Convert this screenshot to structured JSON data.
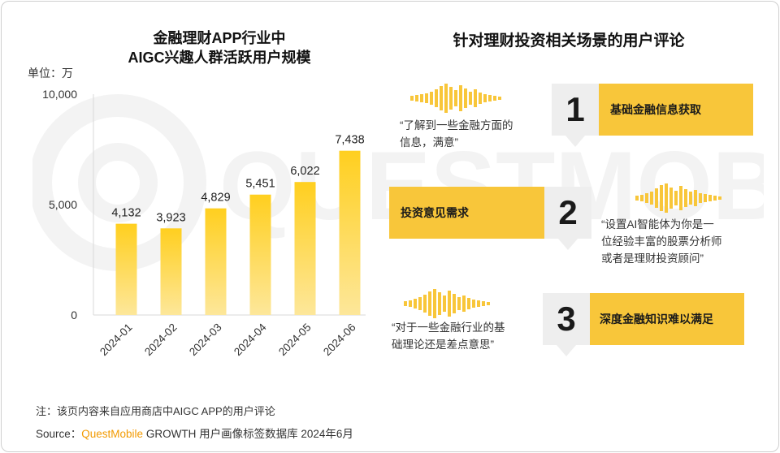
{
  "chart_data": {
    "type": "bar",
    "title_line1": "金融理财APP行业中",
    "title_line2": "AIGC兴趣人群活跃用户规模",
    "unit": "单位：万",
    "categories": [
      "2024-01",
      "2024-02",
      "2024-03",
      "2024-04",
      "2024-05",
      "2024-06"
    ],
    "values": [
      4132,
      3923,
      4829,
      5451,
      6022,
      7438
    ],
    "value_labels": [
      "4,132",
      "3,923",
      "4,829",
      "5,451",
      "6,022",
      "7,438"
    ],
    "yticks": [
      0,
      5000,
      10000
    ],
    "ytick_labels": [
      "0",
      "5,000",
      "10,000"
    ],
    "ylim": [
      0,
      10000
    ],
    "bar_color": "#fcc62a"
  },
  "reviews": {
    "title": "针对理财投资相关场景的用户评论",
    "items": [
      {
        "number": "1",
        "theme": "基础金融信息获取",
        "quote_lines": [
          "“了解到一些金融方面的",
          "信息，满意”"
        ]
      },
      {
        "number": "2",
        "theme": "投资意见需求",
        "quote_lines": [
          "“设置AI智能体为你是一",
          "位经验丰富的股票分析师",
          "或者是理财投资顾问”"
        ]
      },
      {
        "number": "3",
        "theme": "深度金融知识难以满足",
        "quote_lines": [
          "“对于一些金融行业的基",
          "础理论还是差点意思”"
        ]
      }
    ]
  },
  "footer": {
    "note": "注：该页内容来自应用商店中AIGC APP的用户评论",
    "source_prefix": "Source：",
    "source_brand": "QuestMobile",
    "source_suffix": " GROWTH 用户画像标签数据库 2024年6月"
  },
  "watermark_text": "QUESTMOBILE",
  "colors": {
    "accent": "#f8c63a",
    "brand": "#f29a00",
    "box_grey": "#eeeeee"
  }
}
